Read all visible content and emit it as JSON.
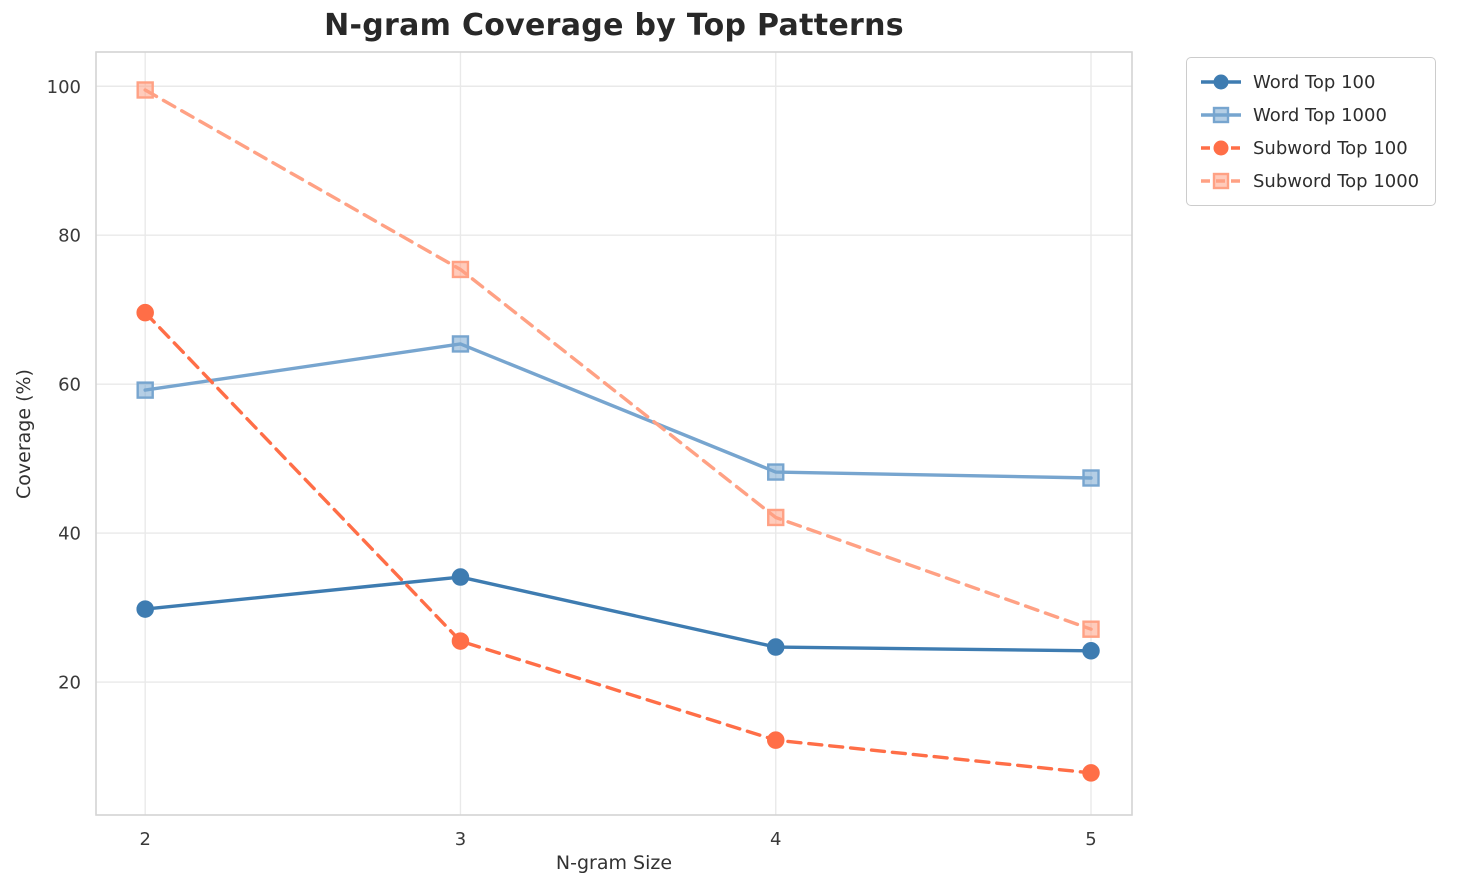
{
  "chart_data": {
    "type": "line",
    "title": "N-gram Coverage by Top Patterns",
    "xlabel": "N-gram Size",
    "ylabel": "Coverage (%)",
    "x": [
      2,
      3,
      4,
      5
    ],
    "series": [
      {
        "name": "Word Top 100",
        "values": [
          29.8,
          34.1,
          24.7,
          24.2
        ],
        "color": "#3E7CB1",
        "linestyle": "solid",
        "marker": "circle"
      },
      {
        "name": "Word Top 1000",
        "values": [
          59.2,
          65.4,
          48.2,
          47.4
        ],
        "color": "#77A5CF",
        "linestyle": "solid",
        "marker": "square"
      },
      {
        "name": "Subword Top 100",
        "values": [
          69.6,
          25.5,
          12.2,
          7.8
        ],
        "color": "#FF6E47",
        "linestyle": "dashed",
        "marker": "circle"
      },
      {
        "name": "Subword Top 1000",
        "values": [
          99.5,
          75.4,
          42.1,
          27.1
        ],
        "color": "#FFA184",
        "linestyle": "dashed",
        "marker": "square"
      }
    ],
    "x_ticks": [
      2,
      3,
      4,
      5
    ],
    "y_ticks": [
      20,
      40,
      60,
      80,
      100
    ],
    "xlim": [
      1.844,
      5.13
    ],
    "ylim": [
      2.15,
      104.6
    ],
    "grid": true,
    "legend_position": "outside-top-right",
    "colors": {
      "grid": "#e9e9e9",
      "spine": "#d4d4d4",
      "title_text": "#282828",
      "tick_text": "#3a3a3a",
      "axis_label_text": "#323232"
    }
  }
}
